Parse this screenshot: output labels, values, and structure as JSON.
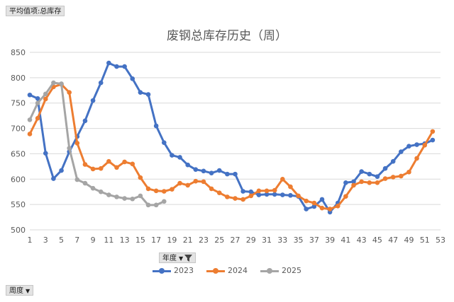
{
  "pivot": {
    "value_field": "平均值项:总库存",
    "year_field": "年度",
    "week_field": "周度"
  },
  "colors": {
    "2023": "#4472c4",
    "2024": "#ed7d31",
    "2025": "#a5a5a5",
    "grid": "#d9d9d9"
  },
  "chart_data": {
    "type": "line",
    "title": "废钢总库存历史（周）",
    "xlabel": "",
    "ylabel": "",
    "ylim": [
      500,
      850
    ],
    "yticks": [
      500,
      550,
      600,
      650,
      700,
      750,
      800,
      850
    ],
    "xlim": [
      1,
      53
    ],
    "xticks": [
      1,
      3,
      5,
      7,
      9,
      11,
      13,
      15,
      17,
      19,
      21,
      23,
      25,
      27,
      29,
      31,
      33,
      35,
      37,
      39,
      41,
      43,
      45,
      47,
      49,
      51,
      53
    ],
    "grid": true,
    "legend_position": "bottom",
    "series": [
      {
        "name": "2023",
        "x": [
          1,
          2,
          3,
          4,
          5,
          6,
          7,
          8,
          9,
          10,
          11,
          12,
          13,
          14,
          15,
          16,
          17,
          18,
          19,
          20,
          21,
          22,
          23,
          24,
          25,
          26,
          27,
          28,
          29,
          30,
          31,
          32,
          33,
          34,
          35,
          36,
          37,
          38,
          39,
          40,
          41,
          42,
          43,
          44,
          45,
          46,
          47,
          48,
          49,
          50,
          51,
          52
        ],
        "values": [
          766,
          759,
          651,
          601,
          617,
          654,
          684,
          715,
          755,
          790,
          829,
          822,
          822,
          798,
          771,
          767,
          705,
          672,
          647,
          643,
          628,
          619,
          616,
          612,
          617,
          610,
          610,
          576,
          575,
          569,
          570,
          570,
          569,
          568,
          566,
          541,
          546,
          560,
          535,
          553,
          593,
          595,
          615,
          610,
          605,
          621,
          635,
          654,
          665,
          668,
          670,
          677
        ]
      },
      {
        "name": "2024",
        "x": [
          1,
          2,
          3,
          4,
          5,
          6,
          7,
          8,
          9,
          10,
          11,
          12,
          13,
          14,
          15,
          16,
          17,
          18,
          19,
          20,
          21,
          22,
          23,
          24,
          25,
          26,
          27,
          28,
          29,
          30,
          31,
          32,
          33,
          34,
          35,
          36,
          37,
          38,
          39,
          40,
          41,
          42,
          43,
          44,
          45,
          46,
          47,
          48,
          49,
          50,
          51,
          52
        ],
        "values": [
          689,
          720,
          758,
          782,
          787,
          771,
          671,
          629,
          620,
          621,
          635,
          623,
          634,
          630,
          603,
          581,
          577,
          576,
          580,
          592,
          588,
          596,
          595,
          581,
          573,
          565,
          562,
          560,
          567,
          577,
          577,
          578,
          600,
          585,
          567,
          557,
          553,
          543,
          541,
          547,
          566,
          588,
          595,
          593,
          593,
          601,
          604,
          606,
          614,
          641,
          667,
          694
        ]
      },
      {
        "name": "2025",
        "x": [
          1,
          2,
          3,
          4,
          5,
          6,
          7,
          8,
          9,
          10,
          11,
          12,
          13,
          14,
          15,
          16,
          17,
          18
        ],
        "values": [
          717,
          750,
          768,
          790,
          788,
          661,
          599,
          592,
          582,
          575,
          569,
          565,
          562,
          561,
          567,
          549,
          549,
          556
        ]
      }
    ]
  }
}
